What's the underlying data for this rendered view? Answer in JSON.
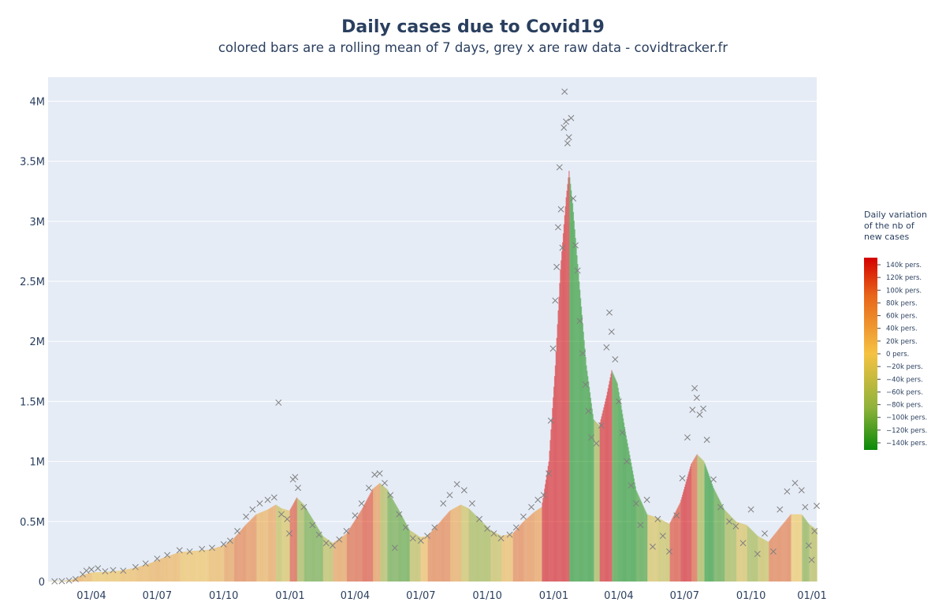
{
  "title": "Daily cases due to Covid19",
  "subtitle": "colored bars are a rolling mean of 7 days, grey x are raw data - covidtracker.fr",
  "colors": {
    "plot_bg": "#e5ecf6",
    "gridline": "#ffffff",
    "marker": "#7f7f7f",
    "text": "#2a3f5f",
    "scale_top": "#d40000",
    "scale_mid": "#f5c242",
    "scale_bottom": "#0a8a0a"
  },
  "colorbar": {
    "title": [
      "Daily variation",
      "of the nb of",
      "new cases"
    ],
    "ticks": [
      "140k pers.",
      "120k pers.",
      "100k pers.",
      "80k pers.",
      "60k pers.",
      "40k pers.",
      "20k pers.",
      "0 pers.",
      "−20k pers.",
      "−40k pers.",
      "−60k pers.",
      "−80k pers.",
      "−100k pers.",
      "−120k pers.",
      "−140k pers."
    ]
  },
  "chart_data": {
    "type": "bar",
    "title": "Daily cases due to Covid19",
    "subtitle": "colored bars are a rolling mean of 7 days, grey x are raw data - covidtracker.fr",
    "xlabel": "",
    "ylabel": "",
    "ylim": [
      0,
      4200000
    ],
    "grid": true,
    "y_ticks": [
      0,
      500000,
      1000000,
      1500000,
      2000000,
      2500000,
      3000000,
      3500000,
      4000000
    ],
    "y_tick_labels": [
      "0",
      "0.5M",
      "1M",
      "1.5M",
      "2M",
      "2.5M",
      "3M",
      "3.5M",
      "4M"
    ],
    "x_tick_labels": [
      "01/04",
      "01/07",
      "01/10",
      "01/01",
      "01/04",
      "01/07",
      "01/10",
      "01/01",
      "01/04",
      "01/07",
      "01/10",
      "01/01"
    ],
    "x_range": [
      "2020-02-01",
      "2022-12-31"
    ],
    "series": [
      {
        "name": "",
        "kind": "rolling mean of 7 days (colored by daily variation)",
        "points": [
          [
            "2020-02-01",
            2000
          ],
          [
            "2020-02-20",
            3000
          ],
          [
            "2020-03-05",
            15000
          ],
          [
            "2020-03-20",
            55000
          ],
          [
            "2020-04-01",
            75000
          ],
          [
            "2020-04-20",
            80000
          ],
          [
            "2020-05-10",
            90000
          ],
          [
            "2020-06-01",
            115000
          ],
          [
            "2020-06-20",
            150000
          ],
          [
            "2020-07-10",
            200000
          ],
          [
            "2020-08-01",
            245000
          ],
          [
            "2020-08-20",
            255000
          ],
          [
            "2020-09-10",
            265000
          ],
          [
            "2020-10-01",
            300000
          ],
          [
            "2020-10-15",
            360000
          ],
          [
            "2020-10-31",
            470000
          ],
          [
            "2020-11-15",
            560000
          ],
          [
            "2020-12-01",
            600000
          ],
          [
            "2020-12-12",
            640000
          ],
          [
            "2020-12-20",
            610000
          ],
          [
            "2020-12-31",
            590000
          ],
          [
            "2021-01-10",
            700000
          ],
          [
            "2021-01-20",
            640000
          ],
          [
            "2021-02-01",
            520000
          ],
          [
            "2021-02-15",
            380000
          ],
          [
            "2021-03-01",
            320000
          ],
          [
            "2021-03-20",
            400000
          ],
          [
            "2021-04-10",
            600000
          ],
          [
            "2021-04-25",
            770000
          ],
          [
            "2021-05-05",
            820000
          ],
          [
            "2021-05-15",
            770000
          ],
          [
            "2021-05-31",
            600000
          ],
          [
            "2021-06-15",
            430000
          ],
          [
            "2021-06-30",
            370000
          ],
          [
            "2021-07-10",
            380000
          ],
          [
            "2021-07-25",
            480000
          ],
          [
            "2021-08-10",
            590000
          ],
          [
            "2021-08-25",
            640000
          ],
          [
            "2021-09-05",
            610000
          ],
          [
            "2021-09-20",
            520000
          ],
          [
            "2021-10-05",
            430000
          ],
          [
            "2021-10-20",
            380000
          ],
          [
            "2021-11-05",
            400000
          ],
          [
            "2021-11-20",
            500000
          ],
          [
            "2021-12-05",
            580000
          ],
          [
            "2021-12-15",
            620000
          ],
          [
            "2021-12-25",
            1000000
          ],
          [
            "2022-01-03",
            1800000
          ],
          [
            "2022-01-10",
            2600000
          ],
          [
            "2022-01-18",
            3200000
          ],
          [
            "2022-01-22",
            3420000
          ],
          [
            "2022-01-27",
            3150000
          ],
          [
            "2022-02-05",
            2500000
          ],
          [
            "2022-02-15",
            1800000
          ],
          [
            "2022-02-25",
            1350000
          ],
          [
            "2022-03-05",
            1300000
          ],
          [
            "2022-03-15",
            1550000
          ],
          [
            "2022-03-22",
            1760000
          ],
          [
            "2022-03-30",
            1650000
          ],
          [
            "2022-04-10",
            1250000
          ],
          [
            "2022-04-25",
            760000
          ],
          [
            "2022-05-10",
            560000
          ],
          [
            "2022-05-25",
            530000
          ],
          [
            "2022-06-10",
            480000
          ],
          [
            "2022-06-25",
            660000
          ],
          [
            "2022-07-10",
            980000
          ],
          [
            "2022-07-18",
            1060000
          ],
          [
            "2022-07-28",
            1000000
          ],
          [
            "2022-08-10",
            780000
          ],
          [
            "2022-08-25",
            600000
          ],
          [
            "2022-09-10",
            500000
          ],
          [
            "2022-09-25",
            470000
          ],
          [
            "2022-10-10",
            380000
          ],
          [
            "2022-10-25",
            330000
          ],
          [
            "2022-11-10",
            450000
          ],
          [
            "2022-11-25",
            560000
          ],
          [
            "2022-12-10",
            560000
          ],
          [
            "2022-12-20",
            480000
          ],
          [
            "2022-12-31",
            430000
          ]
        ]
      },
      {
        "name": "",
        "kind": "raw daily data (grey x markers)",
        "points": [
          [
            "2020-02-10",
            1000
          ],
          [
            "2020-02-20",
            3000
          ],
          [
            "2020-03-01",
            8000
          ],
          [
            "2020-03-10",
            20000
          ],
          [
            "2020-03-20",
            60000
          ],
          [
            "2020-03-25",
            90000
          ],
          [
            "2020-04-01",
            100000
          ],
          [
            "2020-04-10",
            110000
          ],
          [
            "2020-04-20",
            85000
          ],
          [
            "2020-05-01",
            95000
          ],
          [
            "2020-05-15",
            90000
          ],
          [
            "2020-06-01",
            120000
          ],
          [
            "2020-06-15",
            150000
          ],
          [
            "2020-07-01",
            190000
          ],
          [
            "2020-07-15",
            220000
          ],
          [
            "2020-08-01",
            260000
          ],
          [
            "2020-08-15",
            250000
          ],
          [
            "2020-09-01",
            270000
          ],
          [
            "2020-09-15",
            280000
          ],
          [
            "2020-10-01",
            310000
          ],
          [
            "2020-10-10",
            340000
          ],
          [
            "2020-10-20",
            420000
          ],
          [
            "2020-11-01",
            540000
          ],
          [
            "2020-11-10",
            600000
          ],
          [
            "2020-11-20",
            650000
          ],
          [
            "2020-12-01",
            680000
          ],
          [
            "2020-12-10",
            700000
          ],
          [
            "2020-12-16",
            1490000
          ],
          [
            "2020-12-20",
            560000
          ],
          [
            "2020-12-28",
            520000
          ],
          [
            "2020-12-31",
            400000
          ],
          [
            "2021-01-05",
            850000
          ],
          [
            "2021-01-08",
            870000
          ],
          [
            "2021-01-12",
            780000
          ],
          [
            "2021-01-20",
            620000
          ],
          [
            "2021-02-01",
            470000
          ],
          [
            "2021-02-10",
            390000
          ],
          [
            "2021-02-20",
            320000
          ],
          [
            "2021-03-01",
            300000
          ],
          [
            "2021-03-10",
            350000
          ],
          [
            "2021-03-20",
            420000
          ],
          [
            "2021-04-01",
            550000
          ],
          [
            "2021-04-10",
            650000
          ],
          [
            "2021-04-20",
            780000
          ],
          [
            "2021-04-28",
            890000
          ],
          [
            "2021-05-05",
            900000
          ],
          [
            "2021-05-12",
            820000
          ],
          [
            "2021-05-20",
            720000
          ],
          [
            "2021-05-26",
            280000
          ],
          [
            "2021-06-01",
            560000
          ],
          [
            "2021-06-10",
            450000
          ],
          [
            "2021-06-20",
            360000
          ],
          [
            "2021-07-01",
            340000
          ],
          [
            "2021-07-10",
            380000
          ],
          [
            "2021-07-20",
            450000
          ],
          [
            "2021-08-01",
            650000
          ],
          [
            "2021-08-10",
            720000
          ],
          [
            "2021-08-20",
            810000
          ],
          [
            "2021-08-30",
            760000
          ],
          [
            "2021-09-10",
            650000
          ],
          [
            "2021-09-20",
            520000
          ],
          [
            "2021-10-01",
            440000
          ],
          [
            "2021-10-10",
            400000
          ],
          [
            "2021-10-20",
            360000
          ],
          [
            "2021-11-01",
            390000
          ],
          [
            "2021-11-10",
            450000
          ],
          [
            "2021-11-20",
            540000
          ],
          [
            "2021-12-01",
            620000
          ],
          [
            "2021-12-10",
            680000
          ],
          [
            "2021-12-18",
            720000
          ],
          [
            "2021-12-25",
            900000
          ],
          [
            "2021-12-28",
            1340000
          ],
          [
            "2021-12-31",
            1940000
          ],
          [
            "2022-01-03",
            2340000
          ],
          [
            "2022-01-05",
            2620000
          ],
          [
            "2022-01-07",
            2950000
          ],
          [
            "2022-01-09",
            3450000
          ],
          [
            "2022-01-11",
            3100000
          ],
          [
            "2022-01-13",
            2780000
          ],
          [
            "2022-01-15",
            3780000
          ],
          [
            "2022-01-16",
            4080000
          ],
          [
            "2022-01-18",
            3830000
          ],
          [
            "2022-01-20",
            3650000
          ],
          [
            "2022-01-22",
            3700000
          ],
          [
            "2022-01-25",
            3860000
          ],
          [
            "2022-01-28",
            3190000
          ],
          [
            "2022-01-31",
            2800000
          ],
          [
            "2022-02-03",
            2590000
          ],
          [
            "2022-02-06",
            2170000
          ],
          [
            "2022-02-10",
            1900000
          ],
          [
            "2022-02-14",
            1640000
          ],
          [
            "2022-02-18",
            1420000
          ],
          [
            "2022-02-22",
            1200000
          ],
          [
            "2022-03-01",
            1150000
          ],
          [
            "2022-03-08",
            1300000
          ],
          [
            "2022-03-15",
            1950000
          ],
          [
            "2022-03-19",
            2240000
          ],
          [
            "2022-03-22",
            2080000
          ],
          [
            "2022-03-27",
            1850000
          ],
          [
            "2022-04-01",
            1500000
          ],
          [
            "2022-04-06",
            1240000
          ],
          [
            "2022-04-12",
            1000000
          ],
          [
            "2022-04-18",
            800000
          ],
          [
            "2022-04-25",
            650000
          ],
          [
            "2022-05-01",
            470000
          ],
          [
            "2022-05-10",
            680000
          ],
          [
            "2022-05-18",
            290000
          ],
          [
            "2022-05-25",
            520000
          ],
          [
            "2022-06-01",
            380000
          ],
          [
            "2022-06-10",
            250000
          ],
          [
            "2022-06-20",
            550000
          ],
          [
            "2022-06-28",
            860000
          ],
          [
            "2022-07-05",
            1200000
          ],
          [
            "2022-07-12",
            1430000
          ],
          [
            "2022-07-15",
            1610000
          ],
          [
            "2022-07-18",
            1530000
          ],
          [
            "2022-07-22",
            1390000
          ],
          [
            "2022-07-27",
            1440000
          ],
          [
            "2022-08-01",
            1180000
          ],
          [
            "2022-08-10",
            850000
          ],
          [
            "2022-08-20",
            620000
          ],
          [
            "2022-09-01",
            500000
          ],
          [
            "2022-09-10",
            460000
          ],
          [
            "2022-09-20",
            320000
          ],
          [
            "2022-10-01",
            600000
          ],
          [
            "2022-10-10",
            230000
          ],
          [
            "2022-10-20",
            400000
          ],
          [
            "2022-11-01",
            250000
          ],
          [
            "2022-11-10",
            600000
          ],
          [
            "2022-11-20",
            750000
          ],
          [
            "2022-12-01",
            820000
          ],
          [
            "2022-12-10",
            760000
          ],
          [
            "2022-12-15",
            620000
          ],
          [
            "2022-12-20",
            300000
          ],
          [
            "2022-12-24",
            180000
          ],
          [
            "2022-12-28",
            420000
          ],
          [
            "2022-12-31",
            630000
          ]
        ]
      }
    ]
  }
}
